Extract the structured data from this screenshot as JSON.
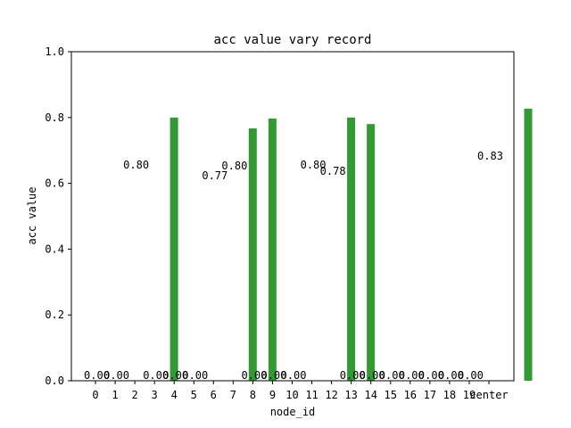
{
  "chart_data": {
    "type": "bar",
    "title": "acc value vary record",
    "xlabel": "node_id",
    "ylabel": "acc value",
    "categories": [
      "0",
      "1",
      "2",
      "3",
      "4",
      "5",
      "6",
      "7",
      "8",
      "9",
      "10",
      "11",
      "12",
      "13",
      "14",
      "15",
      "16",
      "17",
      "18",
      "19",
      "center"
    ],
    "values": [
      0.0,
      0.0,
      0.8,
      0.0,
      0.0,
      0.0,
      0.767,
      0.797,
      0.0,
      0.0,
      0.0,
      0.8,
      0.78,
      0.0,
      0.0,
      0.0,
      0.0,
      0.0,
      0.0,
      0.0,
      0.827
    ],
    "data_labels": [
      "0.00",
      "0.00",
      "0.80",
      "0.00",
      "0.00",
      "0.00",
      "0.77",
      "0.80",
      "0.00",
      "0.00",
      "0.00",
      "0.80",
      "0.78",
      "0.00",
      "0.00",
      "0.00",
      "0.00",
      "0.00",
      "0.00",
      "0.00",
      "0.83"
    ],
    "ylim": [
      0,
      1.0
    ],
    "yticks": [
      "0.0",
      "0.2",
      "0.4",
      "0.6",
      "0.8",
      "1.0"
    ],
    "bar_color": "#339933",
    "grid": false,
    "legend": false
  }
}
